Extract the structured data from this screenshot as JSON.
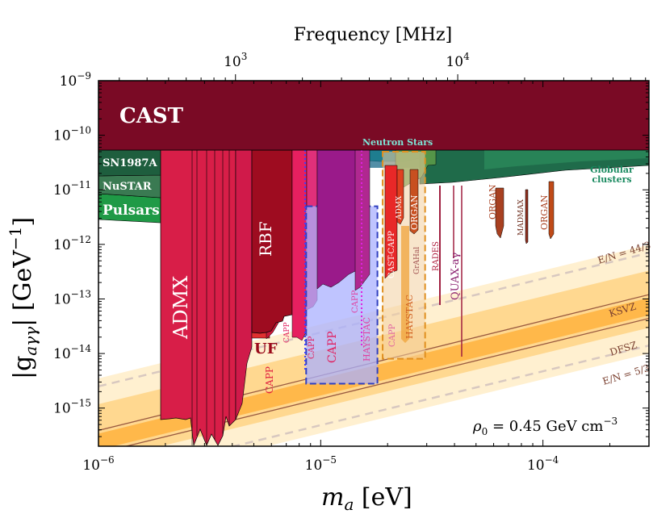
{
  "chart_data": {
    "type": "exclusion-plot",
    "title": "",
    "xlabel": "m_a [eV]",
    "ylabel": "|g_aγγ| [GeV^-1]",
    "top_xlabel": "Frequency [MHz]",
    "x_scale": "log",
    "y_scale": "log",
    "xlim": [
      1e-06,
      0.0003
    ],
    "ylim": [
      2e-16,
      1e-09
    ],
    "x_ticks": [
      {
        "value": 1e-06,
        "mantissa": "10",
        "exp": "−6"
      },
      {
        "value": 1e-05,
        "mantissa": "10",
        "exp": "−5"
      },
      {
        "value": 0.0001,
        "mantissa": "10",
        "exp": "−4"
      }
    ],
    "y_ticks": [
      {
        "value": 1e-09,
        "mantissa": "10",
        "exp": "−9"
      },
      {
        "value": 1e-10,
        "mantissa": "10",
        "exp": "−10"
      },
      {
        "value": 1e-11,
        "mantissa": "10",
        "exp": "−11"
      },
      {
        "value": 1e-12,
        "mantissa": "10",
        "exp": "−12"
      },
      {
        "value": 1e-13,
        "mantissa": "10",
        "exp": "−13"
      },
      {
        "value": 1e-14,
        "mantissa": "10",
        "exp": "−14"
      },
      {
        "value": 1e-15,
        "mantissa": "10",
        "exp": "−15"
      }
    ],
    "top_ticks": [
      {
        "mass": 4.136e-06,
        "mantissa": "10",
        "exp": "3"
      },
      {
        "mass": 4.136e-05,
        "mantissa": "10",
        "exp": "4"
      }
    ],
    "annotation": "ρ0 = 0.45 GeV cm−3",
    "theory_lines": [
      {
        "name": "E/N = 44/3",
        "style": "dashed",
        "color": "#d8c8c0",
        "points": [
          [
            1e-06,
            2.5e-15
          ],
          [
            0.0003,
            7e-13
          ]
        ]
      },
      {
        "name": "KSVZ",
        "style": "solid",
        "color": "#9a5a40",
        "points": [
          [
            1e-06,
            3.9e-16
          ],
          [
            0.0003,
            1.2e-13
          ]
        ]
      },
      {
        "name": "DFSZ",
        "style": "solid",
        "color": "#9a5a40",
        "points": [
          [
            1e-06,
            1.5e-16
          ],
          [
            0.0003,
            4.4e-14
          ]
        ]
      },
      {
        "name": "E/N = 5/3",
        "style": "dashed",
        "color": "#d8c8c0",
        "points": [
          [
            1e-06,
            5e-17
          ],
          [
            0.0003,
            1.4e-14
          ]
        ]
      }
    ],
    "regions": [
      {
        "name": "CAST",
        "color": "#7a0a25",
        "x_range": [
          1e-06,
          0.0003
        ],
        "y_range": [
          6e-11,
          1e-09
        ]
      },
      {
        "name": "Neutron Stars",
        "color": "#2fb8a0",
        "x_range": [
          4.5e-06,
          2e-05
        ],
        "y_range": [
          4e-11,
          6e-11
        ]
      },
      {
        "name": "Globular clusters",
        "color": "#1f6b4a",
        "x_range": [
          1.5e-05,
          0.0003
        ],
        "y_range": [
          3e-11,
          6e-11
        ]
      },
      {
        "name": "SN1987A",
        "color": "#1e5e3e",
        "x_range": [
          1e-06,
          2e-06
        ],
        "y_range": [
          3e-11,
          6e-11
        ]
      },
      {
        "name": "NuSTAR",
        "color": "#2e7a52",
        "x_range": [
          1e-06,
          2e-06
        ],
        "y_range": [
          1e-11,
          3e-11
        ]
      },
      {
        "name": "Pulsars",
        "color": "#1f9a46",
        "x_range": [
          1e-06,
          2e-06
        ],
        "y_range": [
          3e-12,
          1e-11
        ]
      },
      {
        "name": "ADMX",
        "color": "#d81e48",
        "x_range": [
          2e-06,
          5.3e-06
        ],
        "y_range": [
          3e-16,
          6e-11
        ]
      },
      {
        "name": "UF",
        "color": "#e03030",
        "x_range": [
          4.5e-06,
          5.6e-06
        ],
        "y_range": [
          1e-14,
          2e-14
        ]
      },
      {
        "name": "RBF",
        "color": "#9e0c20",
        "x_range": [
          5.4e-06,
          7.2e-06
        ],
        "y_range": [
          1.2e-13,
          6e-11
        ]
      },
      {
        "name": "CAPP",
        "color": "#e62060",
        "x_range": [
          5.8e-06,
          2e-05
        ],
        "y_range": [
          5e-14,
          6e-11
        ]
      },
      {
        "name": "HAYSTAC",
        "color": "#9a1070",
        "x_range": [
          1.6e-05,
          1.75e-05
        ],
        "y_range": [
          5e-14,
          6e-11
        ]
      },
      {
        "name": "CAST-CAPP",
        "color": "#e82828",
        "x_range": [
          2e-05,
          2.25e-05
        ],
        "y_range": [
          2e-13,
          6e-11
        ]
      },
      {
        "name": "ADMX",
        "color": "#e04020",
        "x_range": [
          2.3e-05,
          2.5e-05
        ],
        "y_range": [
          3e-12,
          6e-11
        ]
      },
      {
        "name": "ORGAN",
        "color": "#c85020",
        "x_range": [
          2.7e-05,
          2.9e-05
        ],
        "y_range": [
          2e-12,
          6e-11
        ]
      },
      {
        "name": "QUAX-aγ",
        "color": "#a83060",
        "x_range": [
          4.2e-05,
          4.4e-05
        ],
        "y_range": [
          1e-13,
          6e-11
        ]
      },
      {
        "name": "ORGAN",
        "color": "#a84020",
        "x_range": [
          6.3e-05,
          6.7e-05
        ],
        "y_range": [
          3e-12,
          2e-11
        ]
      },
      {
        "name": "MADMAX",
        "color": "#903020",
        "x_range": [
          7.6e-05,
          7.8e-05
        ],
        "y_range": [
          2e-12,
          2e-11
        ]
      },
      {
        "name": "ORGAN",
        "color": "#c04a18",
        "x_range": [
          0.000107,
          0.000111
        ],
        "y_range": [
          2e-12,
          3e-11
        ]
      }
    ],
    "dashed_boxes": [
      {
        "color": "#3040c0",
        "fill": "#aab0ff",
        "x_range": [
          8.6e-06,
          1.8e-05
        ],
        "y_range": [
          2.8e-15,
          5e-12
        ]
      },
      {
        "color": "#e09020",
        "fill": "#f3d0a0",
        "x_range": [
          1.9e-05,
          2.95e-05
        ],
        "y_range": [
          8e-15,
          5e-11
        ]
      }
    ]
  },
  "labels": {
    "cast": "CAST",
    "neutron_stars": "Neutron Stars",
    "globular_1": "Globular",
    "globular_2": "clusters",
    "sn1987a": "SN1987A",
    "nustar": "NuSTAR",
    "pulsars": "Pulsars",
    "admx_main": "ADMX",
    "rbf": "RBF",
    "uf": "UF",
    "capp_1": "CAPP",
    "capp_2": "CAPP",
    "capp_3": "CAPP",
    "capp_4": "CAPP",
    "capp_5": "CAPP",
    "capp_6": "CAPP",
    "haystac_1": "HAYSTAC",
    "haystac_2": "HAYSTAC",
    "cast_capp": "CAST-CAPP",
    "admx_hi": "ADMX",
    "organ_1": "ORGAN",
    "gaHa": "GrAHal",
    "rades": "RADES",
    "quax": "QUAX-aγ",
    "organ_2": "ORGAN",
    "madmax": "MADMAX",
    "organ_3": "ORGAN",
    "en_44": "E/N = 44/3",
    "ksvz": "KSVZ",
    "dfsz": "DFSZ",
    "en_5": "E/N = 5/3",
    "rho_label": "ρ",
    "rho_sub": "0",
    "rho_rest": " = 0.45 GeV cm",
    "rho_exp": "−3",
    "xlabel_m": "m",
    "xlabel_sub": "a",
    "xlabel_rest": " [eV]",
    "ylabel_main": "|g",
    "ylabel_sub": "aγγ",
    "ylabel_rest": "| [GeV",
    "ylabel_exp": "−1",
    "ylabel_close": "]",
    "top_label": "Frequency [MHz]"
  },
  "colors": {
    "band_outer": "#fff4d8",
    "band_inner": "#ffc060",
    "frame": "#000000"
  }
}
